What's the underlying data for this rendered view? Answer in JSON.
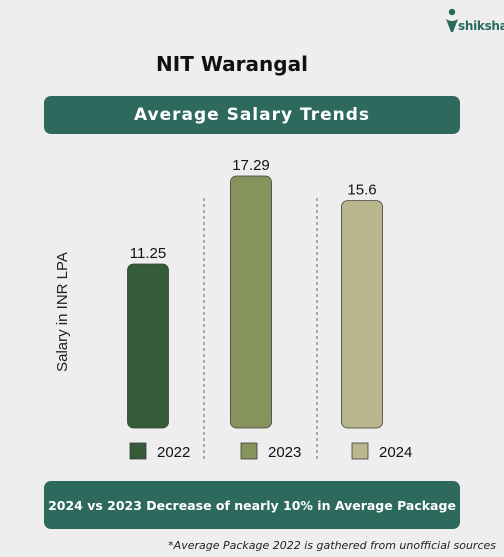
{
  "brand": {
    "name": "shiksha",
    "icon": "shiksha-logo-icon",
    "color": "#2a6a5e"
  },
  "header": {
    "title": "NIT Warangal"
  },
  "banner": {
    "text": "Average Salary Trends",
    "color": "#2d6a5d"
  },
  "chart_data": {
    "type": "bar",
    "title": "Average Salary Trends",
    "xlabel": "",
    "ylabel": "Salary in INR LPA",
    "categories": [
      "2022",
      "2023",
      "2024"
    ],
    "values": [
      11.25,
      17.29,
      15.6
    ],
    "value_labels": [
      "11.25",
      "17.29",
      "15.6"
    ],
    "colors": [
      "#345c39",
      "#86935c",
      "#b9b68d"
    ],
    "legend": {
      "position": "bottom",
      "entries": [
        "2022",
        "2023",
        "2024"
      ]
    },
    "grid": false
  },
  "summary": {
    "text": "2024 vs 2023 Decrease of nearly 10% in Average Package"
  },
  "footnote": {
    "text": "*Average Package 2022 is gathered from unofficial sources"
  }
}
